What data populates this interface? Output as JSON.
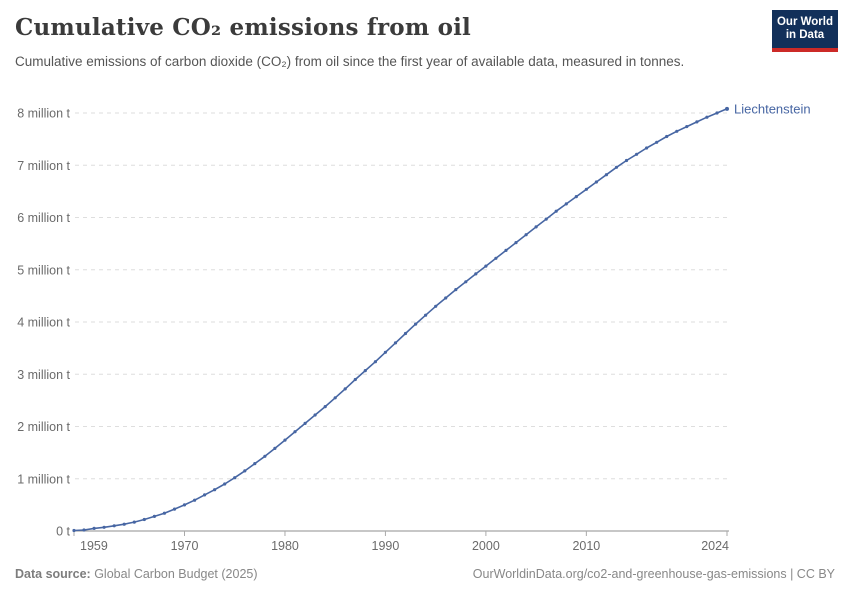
{
  "header": {
    "title": "Cumulative CO₂ emissions from oil",
    "subtitle": "Cumulative emissions of carbon dioxide (CO₂) from oil since the first year of available data, measured in tonnes.",
    "logo": {
      "line1": "Our World",
      "line2": "in Data"
    }
  },
  "chart_data": {
    "type": "line",
    "title": "Cumulative CO₂ emissions from oil",
    "entity": "Liechtenstein",
    "unit": "tonnes",
    "value_scale": "million tonnes",
    "xlim": [
      1959,
      2024
    ],
    "ylim": [
      0,
      8
    ],
    "grid": "horizontal-dashed",
    "legend_position": "end-of-line-label",
    "xticks": [
      1959,
      1970,
      1980,
      1990,
      2000,
      2010,
      2024
    ],
    "yticks": [
      {
        "value": 0,
        "label": "0 t"
      },
      {
        "value": 1,
        "label": "1 million t"
      },
      {
        "value": 2,
        "label": "2 million t"
      },
      {
        "value": 3,
        "label": "3 million t"
      },
      {
        "value": 4,
        "label": "4 million t"
      },
      {
        "value": 5,
        "label": "5 million t"
      },
      {
        "value": 6,
        "label": "6 million t"
      },
      {
        "value": 7,
        "label": "7 million t"
      },
      {
        "value": 8,
        "label": "8 million t"
      }
    ],
    "series": [
      {
        "name": "Liechtenstein",
        "color": "#4766a3",
        "years": [
          1959,
          1960,
          1961,
          1962,
          1963,
          1964,
          1965,
          1966,
          1967,
          1968,
          1969,
          1970,
          1971,
          1972,
          1973,
          1974,
          1975,
          1976,
          1977,
          1978,
          1979,
          1980,
          1981,
          1982,
          1983,
          1984,
          1985,
          1986,
          1987,
          1988,
          1989,
          1990,
          1991,
          1992,
          1993,
          1994,
          1995,
          1996,
          1997,
          1998,
          1999,
          2000,
          2001,
          2002,
          2003,
          2004,
          2005,
          2006,
          2007,
          2008,
          2009,
          2010,
          2011,
          2012,
          2013,
          2014,
          2015,
          2016,
          2017,
          2018,
          2019,
          2020,
          2021,
          2022,
          2023,
          2024
        ],
        "values_million_t": [
          0.01,
          0.02,
          0.05,
          0.07,
          0.1,
          0.13,
          0.17,
          0.22,
          0.28,
          0.34,
          0.42,
          0.5,
          0.59,
          0.69,
          0.79,
          0.9,
          1.02,
          1.15,
          1.29,
          1.43,
          1.58,
          1.74,
          1.9,
          2.06,
          2.22,
          2.38,
          2.55,
          2.72,
          2.9,
          3.07,
          3.24,
          3.42,
          3.6,
          3.78,
          3.96,
          4.13,
          4.3,
          4.46,
          4.62,
          4.77,
          4.92,
          5.07,
          5.22,
          5.37,
          5.52,
          5.67,
          5.82,
          5.97,
          6.12,
          6.26,
          6.4,
          6.54,
          6.68,
          6.82,
          6.96,
          7.09,
          7.21,
          7.33,
          7.44,
          7.55,
          7.65,
          7.74,
          7.83,
          7.92,
          8.0,
          8.08
        ]
      }
    ],
    "colors": {
      "grid": "#dedede",
      "axis": "#8f8f8f",
      "tick": "#aaaaaa",
      "tick_label": "#6b6b6b"
    }
  },
  "footer": {
    "source_label": "Data source:",
    "source_text": " Global Carbon Budget (2025)",
    "link_text": "OurWorldinData.org/co2-and-greenhouse-gas-emissions",
    "license_sep": " | ",
    "license_text": "CC BY"
  }
}
